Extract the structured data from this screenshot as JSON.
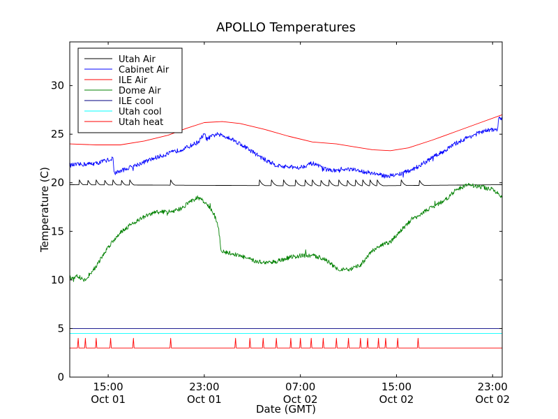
{
  "chart_data": {
    "type": "line",
    "title": "APOLLO Temperatures",
    "xlabel": "Date (GMT)",
    "ylabel": "Temperature (C)",
    "x_unit": "hours since Oct 01 00:00 GMT",
    "xlim": [
      11.8,
      47.8
    ],
    "ylim": [
      0,
      34.5
    ],
    "x_ticks": [
      {
        "value": 15,
        "line1": "15:00",
        "line2": "Oct 01"
      },
      {
        "value": 23,
        "line1": "23:00",
        "line2": "Oct 01"
      },
      {
        "value": 31,
        "line1": "07:00",
        "line2": "Oct 02"
      },
      {
        "value": 39,
        "line1": "15:00",
        "line2": "Oct 02"
      },
      {
        "value": 47,
        "line1": "23:00",
        "line2": "Oct 02"
      }
    ],
    "y_ticks": [
      0,
      5,
      10,
      15,
      20,
      25,
      30
    ],
    "legend_position": "top-left",
    "series": [
      {
        "name": "Utah Air",
        "color": "#000000",
        "style": "sawtooth",
        "base": 19.6,
        "peak": 20.3,
        "peaks_x": [
          12.6,
          13.3,
          14.0,
          14.7,
          15.4,
          16.1,
          16.8,
          20.2,
          27.6,
          28.6,
          29.6,
          30.6,
          31.4,
          32.0,
          32.7,
          33.4,
          34.2,
          34.9,
          35.6,
          36.2,
          36.8,
          37.4,
          39.4,
          40.9
        ],
        "x": [
          11.8,
          30.0,
          37.8,
          47.8
        ],
        "y": [
          19.8,
          19.7,
          19.7,
          19.8
        ]
      },
      {
        "name": "Cabinet Air",
        "color": "#0000ff",
        "style": "noisy",
        "x": [
          11.8,
          14.0,
          15.4,
          15.5,
          16.0,
          17.5,
          19.0,
          20.5,
          21.5,
          22.5,
          23.0,
          23.2,
          24.0,
          25.0,
          26.0,
          27.0,
          28.0,
          29.0,
          30.0,
          31.0,
          32.0,
          33.0,
          34.0,
          35.0,
          36.0,
          37.0,
          38.0,
          39.0,
          40.0,
          41.0,
          42.0,
          43.0,
          44.0,
          45.0,
          46.0,
          47.0,
          47.4,
          47.5,
          47.8
        ],
        "y": [
          21.8,
          22.0,
          22.5,
          21.0,
          21.2,
          21.9,
          22.6,
          23.2,
          23.6,
          24.2,
          25.0,
          24.5,
          25.0,
          24.7,
          24.0,
          23.2,
          22.4,
          21.8,
          21.6,
          21.6,
          22.0,
          21.4,
          21.2,
          21.4,
          21.2,
          21.0,
          20.7,
          20.8,
          21.2,
          21.8,
          22.6,
          23.3,
          24.1,
          24.7,
          25.2,
          25.5,
          25.4,
          26.5,
          26.7
        ]
      },
      {
        "name": "ILE Air",
        "color": "#ff0000",
        "style": "smooth",
        "x": [
          11.8,
          14.0,
          16.0,
          18.0,
          20.0,
          21.5,
          23.0,
          24.5,
          26.0,
          28.0,
          30.0,
          32.0,
          34.0,
          35.5,
          37.0,
          38.5,
          40.0,
          42.0,
          44.0,
          46.0,
          47.8
        ],
        "y": [
          24.0,
          23.9,
          23.9,
          24.3,
          24.9,
          25.6,
          26.2,
          26.3,
          26.1,
          25.5,
          24.8,
          24.2,
          24.0,
          23.7,
          23.4,
          23.3,
          23.6,
          24.4,
          25.3,
          26.2,
          27.0
        ]
      },
      {
        "name": "Dome Air",
        "color": "#008000",
        "style": "noisy",
        "x": [
          11.8,
          12.5,
          13.0,
          14.0,
          15.0,
          16.0,
          17.0,
          18.0,
          19.0,
          20.0,
          21.0,
          22.0,
          22.5,
          23.2,
          23.8,
          24.2,
          24.4,
          24.6,
          25.0,
          26.0,
          27.0,
          28.0,
          29.0,
          30.0,
          31.0,
          32.0,
          33.0,
          34.0,
          35.0,
          36.0,
          37.0,
          38.0,
          38.5,
          39.0,
          40.0,
          41.0,
          42.0,
          43.0,
          44.0,
          45.0,
          46.0,
          47.0,
          47.8
        ],
        "y": [
          10.2,
          10.4,
          9.9,
          11.4,
          13.4,
          14.9,
          15.8,
          16.5,
          17.0,
          17.0,
          17.3,
          18.2,
          18.5,
          17.8,
          16.8,
          15.3,
          12.8,
          12.9,
          12.8,
          12.5,
          12.0,
          11.8,
          11.9,
          12.3,
          12.5,
          12.5,
          12.2,
          11.2,
          11.0,
          11.5,
          13.0,
          13.7,
          13.9,
          14.6,
          15.9,
          16.8,
          17.5,
          18.2,
          19.3,
          19.8,
          19.6,
          19.3,
          18.5
        ]
      },
      {
        "name": "ILE cool",
        "color": "#000080",
        "style": "smooth",
        "x": [
          11.8,
          47.8
        ],
        "y": [
          5.0,
          5.0
        ]
      },
      {
        "name": "Utah cool",
        "color": "#00ffff",
        "style": "smooth",
        "x": [
          11.8,
          47.8
        ],
        "y": [
          4.5,
          4.5
        ]
      },
      {
        "name": "Utah heat",
        "color": "#ff0000",
        "style": "pulses",
        "base": 3.0,
        "pulse_level": 4.0,
        "pulse_width": 0.12,
        "pulses_x": [
          12.5,
          13.1,
          14.0,
          15.2,
          17.1,
          20.2,
          25.6,
          26.8,
          27.9,
          29.0,
          30.2,
          31.0,
          31.9,
          32.9,
          34.0,
          35.0,
          36.0,
          36.6,
          37.5,
          38.1,
          39.1,
          40.8
        ],
        "x": [
          11.8,
          47.8
        ],
        "y": [
          3.0,
          3.0
        ]
      }
    ]
  }
}
